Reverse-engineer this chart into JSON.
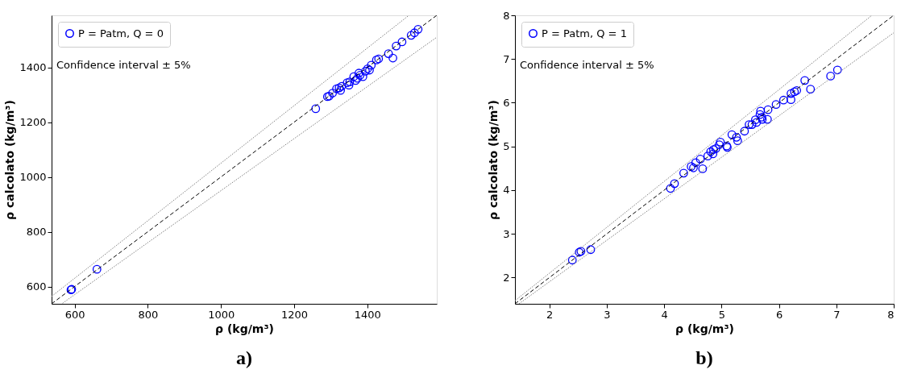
{
  "chart_data": [
    {
      "type": "scatter",
      "title": "a)",
      "xlabel": "ρ (kg/m³)",
      "ylabel": "ρ calcolato (kg/m³)",
      "xlim": [
        537,
        1590
      ],
      "ylim": [
        537,
        1590
      ],
      "xticks": [
        600,
        800,
        1000,
        1200,
        1400
      ],
      "yticks": [
        600,
        800,
        1000,
        1200,
        1400
      ],
      "grid": false,
      "legend": "top left",
      "annotations": [
        "Confidence interval ± 5%"
      ],
      "series": [
        {
          "name": "P = Patm, Q = 0",
          "color": "#0000ff",
          "marker": "circle",
          "x": [
            590,
            592,
            661,
            1259,
            1291,
            1296,
            1305,
            1316,
            1323,
            1327,
            1330,
            1345,
            1350,
            1352,
            1363,
            1368,
            1373,
            1377,
            1380,
            1388,
            1395,
            1401,
            1406,
            1411,
            1425,
            1431,
            1458,
            1470,
            1479,
            1495,
            1520,
            1529,
            1539
          ],
          "values": [
            588,
            590,
            663,
            1249,
            1293,
            1295,
            1306,
            1322,
            1325,
            1316,
            1331,
            1344,
            1335,
            1347,
            1366,
            1352,
            1360,
            1379,
            1371,
            1366,
            1386,
            1395,
            1390,
            1408,
            1427,
            1431,
            1450,
            1434,
            1478,
            1493,
            1517,
            1526,
            1539
          ]
        },
        {
          "type": "line",
          "color": "#000000",
          "line_style": "dashed",
          "x": [
            537,
            1590
          ],
          "values": [
            537,
            1590
          ]
        },
        {
          "type": "line",
          "color": "#808080",
          "line_style": "dotted",
          "x": [
            537,
            1514
          ],
          "values": [
            564,
            1590
          ]
        },
        {
          "type": "line",
          "color": "#808080",
          "line_style": "dotted",
          "x": [
            567,
            1590
          ],
          "values": [
            539,
            1510
          ]
        }
      ]
    },
    {
      "type": "scatter",
      "title": "b)",
      "xlabel": "ρ (kg/m³)",
      "ylabel": "ρ calcolato (kg/m³)",
      "xlim": [
        1.4,
        8.0
      ],
      "ylim": [
        1.4,
        8.0
      ],
      "xticks": [
        2,
        3,
        4,
        5,
        6,
        7,
        8
      ],
      "yticks": [
        2,
        3,
        4,
        5,
        6,
        7,
        8
      ],
      "grid": false,
      "legend": "top left",
      "annotations": [
        "Confidence interval ± 5%"
      ],
      "series": [
        {
          "name": "P = Patm, Q = 1",
          "color": "#0000ff",
          "marker": "circle",
          "x": [
            2.4,
            2.52,
            2.55,
            2.72,
            4.11,
            4.18,
            4.34,
            4.47,
            4.51,
            4.55,
            4.67,
            4.63,
            4.76,
            4.81,
            4.85,
            4.86,
            4.9,
            4.98,
            4.96,
            5.09,
            5.1,
            5.18,
            5.26,
            5.28,
            5.4,
            5.48,
            5.53,
            5.59,
            5.61,
            5.67,
            5.68,
            5.7,
            5.71,
            5.8,
            5.81,
            5.95,
            6.08,
            6.21,
            6.21,
            6.27,
            6.31,
            6.45,
            6.55,
            6.9,
            7.02
          ],
          "values": [
            2.4,
            2.58,
            2.6,
            2.64,
            4.04,
            4.15,
            4.39,
            4.54,
            4.51,
            4.63,
            4.49,
            4.71,
            4.78,
            4.88,
            4.83,
            4.93,
            4.95,
            5.1,
            5.04,
            5.01,
            4.98,
            5.27,
            5.21,
            5.13,
            5.35,
            5.5,
            5.5,
            5.61,
            5.55,
            5.73,
            5.81,
            5.67,
            5.62,
            5.62,
            5.84,
            5.96,
            6.06,
            6.07,
            6.21,
            6.25,
            6.28,
            6.51,
            6.31,
            6.61,
            6.75
          ]
        },
        {
          "type": "line",
          "color": "#000000",
          "line_style": "dashed",
          "x": [
            1.4,
            8.0
          ],
          "values": [
            1.4,
            8.0
          ]
        },
        {
          "type": "line",
          "color": "#808080",
          "line_style": "dotted",
          "x": [
            1.4,
            7.62
          ],
          "values": [
            1.47,
            8.0
          ]
        },
        {
          "type": "line",
          "color": "#808080",
          "line_style": "dotted",
          "x": [
            1.47,
            8.0
          ],
          "values": [
            1.4,
            7.6
          ]
        }
      ]
    }
  ]
}
